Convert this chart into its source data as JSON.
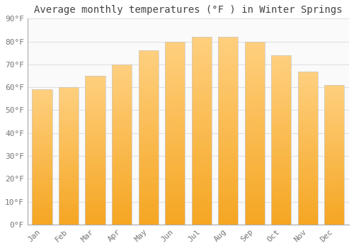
{
  "title": "Average monthly temperatures (°F ) in Winter Springs",
  "months": [
    "Jan",
    "Feb",
    "Mar",
    "Apr",
    "May",
    "Jun",
    "Jul",
    "Aug",
    "Sep",
    "Oct",
    "Nov",
    "Dec"
  ],
  "values": [
    59,
    60,
    65,
    70,
    76,
    80,
    82,
    82,
    80,
    74,
    67,
    61
  ],
  "bar_color_bottom": "#F5A623",
  "bar_color_top": "#FFD080",
  "bar_edge_color": "#C8C8C8",
  "background_color": "#FFFFFF",
  "plot_bg_color": "#FAFAFA",
  "grid_color": "#E0E0E0",
  "text_color": "#777777",
  "title_color": "#444444",
  "spine_color": "#AAAAAA",
  "ylim": [
    0,
    90
  ],
  "yticks": [
    0,
    10,
    20,
    30,
    40,
    50,
    60,
    70,
    80,
    90
  ],
  "ytick_labels": [
    "0°F",
    "10°F",
    "20°F",
    "30°F",
    "40°F",
    "50°F",
    "60°F",
    "70°F",
    "80°F",
    "90°F"
  ],
  "title_fontsize": 10,
  "tick_fontsize": 8
}
